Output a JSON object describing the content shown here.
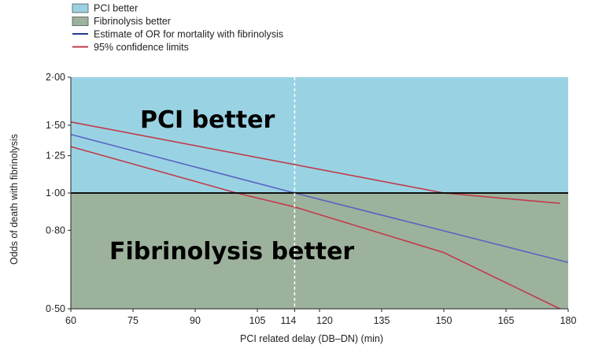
{
  "chart_data": {
    "type": "line",
    "xlabel": "PCI related delay (DB–DN) (min)",
    "ylabel": "Odds of death with fibrinolysis",
    "x_ticks": [
      60,
      75,
      90,
      105,
      114,
      120,
      135,
      150,
      165,
      180
    ],
    "y_ticks": [
      0.5,
      0.8,
      1.0,
      1.25,
      1.5,
      2.0
    ],
    "y_tick_labels": [
      "0·50",
      "0·80",
      "1·00",
      "1·25",
      "1·50",
      "2·00"
    ],
    "xlim": [
      60,
      180
    ],
    "ylim": [
      0.5,
      2.0
    ],
    "y_scale": "log",
    "reference_line": {
      "y": 1.0,
      "color": "#111111"
    },
    "vertical_marker": {
      "x": 114,
      "style": "dashed",
      "color": "#ffffff"
    },
    "regions": [
      {
        "label": "PCI better",
        "legend_label": "PCI better",
        "color": "#99d3e3",
        "y_range": [
          1.0,
          2.0
        ]
      },
      {
        "label": "Fibrinolysis better",
        "legend_label": "Fibrinolysis better",
        "color": "#9db29c",
        "y_range": [
          0.5,
          1.0
        ]
      }
    ],
    "series": [
      {
        "name": "Estimate of OR for mortality with fibrinolysis",
        "color": "#5a63c0",
        "x": [
          60,
          114,
          180
        ],
        "y": [
          1.42,
          1.0,
          0.66
        ]
      },
      {
        "name": "95% confidence limits",
        "color": "#c23a4a",
        "x": [
          60,
          150,
          178
        ],
        "y": [
          1.53,
          1.0,
          0.94
        ]
      },
      {
        "name": "",
        "color": "#c23a4a",
        "x": [
          60,
          100,
          114,
          150,
          178
        ],
        "y": [
          1.32,
          1.0,
          0.92,
          0.7,
          0.5
        ]
      }
    ],
    "legend": {
      "placement": "top-left",
      "items": [
        {
          "label": "PCI better",
          "kind": "box",
          "color": "#99d3e3"
        },
        {
          "label": "Fibrinolysis better",
          "kind": "box",
          "color": "#9db29c"
        },
        {
          "label": "Estimate of OR for mortality with fibrinolysis",
          "kind": "line",
          "color": "#1f3f8a"
        },
        {
          "label": "95% confidence limits",
          "kind": "line",
          "color": "#c23a4a"
        }
      ]
    }
  }
}
